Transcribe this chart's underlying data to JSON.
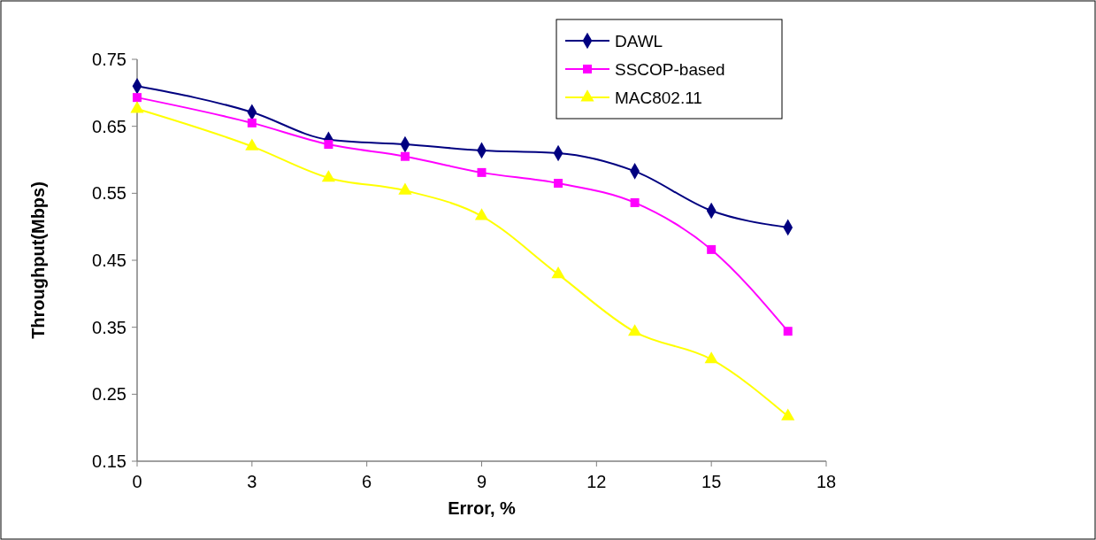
{
  "chart_data": {
    "type": "line",
    "xlabel": "Error, %",
    "ylabel": "Throughput(Mbps)",
    "x": [
      0,
      3,
      5,
      7,
      9,
      11,
      13,
      15,
      17
    ],
    "series": [
      {
        "name": "DAWL",
        "color": "#000080",
        "marker": "diamond",
        "values": [
          0.71,
          0.671,
          0.63,
          0.623,
          0.614,
          0.61,
          0.583,
          0.524,
          0.499
        ]
      },
      {
        "name": "SSCOP-based",
        "color": "#ff00ff",
        "marker": "square",
        "values": [
          0.693,
          0.655,
          0.623,
          0.605,
          0.581,
          0.565,
          0.536,
          0.466,
          0.344
        ]
      },
      {
        "name": "MAC802.11",
        "color": "#ffff00",
        "marker": "triangle",
        "values": [
          0.676,
          0.62,
          0.573,
          0.554,
          0.516,
          0.429,
          0.343,
          0.302,
          0.217
        ]
      }
    ],
    "xlim": [
      0,
      18
    ],
    "xticks": [
      0,
      3,
      6,
      9,
      12,
      15,
      18
    ],
    "ylim": [
      0.15,
      0.75
    ],
    "yticks": [
      0.15,
      0.25,
      0.35,
      0.45,
      0.55,
      0.65,
      0.75
    ],
    "grid": false,
    "legend": "top right",
    "line_style": "solid"
  }
}
